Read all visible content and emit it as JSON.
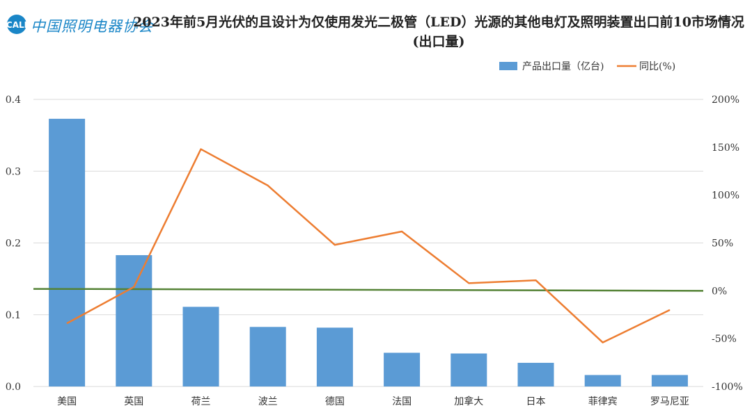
{
  "header": {
    "logo_text": "中国照明电器协会",
    "logo_badge": "CALI"
  },
  "chart_data": {
    "type": "bar",
    "title": "2023年前5月光伏的且设计为仅使用发光二极管（LED）光源的其他电灯及照明装置出口前10市场情况(出口量)",
    "categories": [
      "美国",
      "英国",
      "荷兰",
      "波兰",
      "德国",
      "法国",
      "加拿大",
      "日本",
      "菲律宾",
      "罗马尼亚"
    ],
    "series": [
      {
        "name": "产品出口量（亿台)",
        "type": "bar",
        "axis": "left",
        "color": "#5b9bd5",
        "values": [
          0.373,
          0.183,
          0.111,
          0.083,
          0.082,
          0.047,
          0.046,
          0.033,
          0.016,
          0.016
        ]
      },
      {
        "name": "同比(%)",
        "type": "line",
        "axis": "right",
        "color": "#ed7d31",
        "values": [
          -34,
          4,
          148,
          110,
          48,
          62,
          8,
          11,
          -54,
          -20
        ]
      }
    ],
    "reference_line": {
      "color": "#548235",
      "values": [
        2,
        0
      ]
    },
    "y_left": {
      "min": 0,
      "max": 0.4,
      "ticks": [
        "0.0",
        "0.1",
        "0.2",
        "0.3",
        "0.4"
      ]
    },
    "y_right": {
      "min": -100,
      "max": 200,
      "ticks": [
        "-100%",
        "-50%",
        "0%",
        "50%",
        "100%",
        "150%",
        "200%"
      ]
    },
    "legend_position": "top-right",
    "grid": true
  }
}
